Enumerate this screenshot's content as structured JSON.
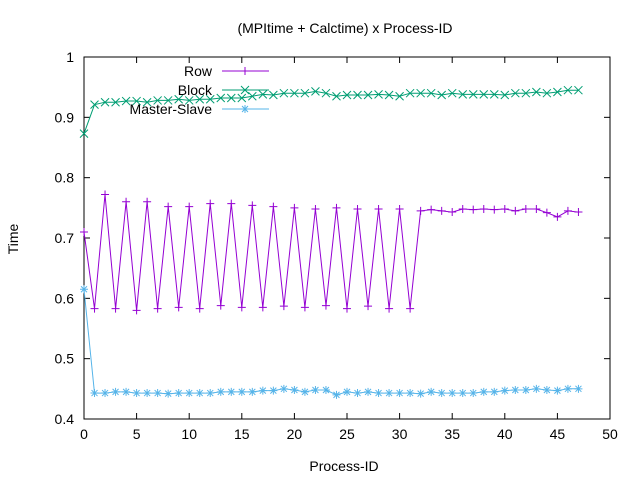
{
  "chart_data": {
    "type": "line",
    "title": "(MPItime + Calctime) x Process-ID",
    "xlabel": "Process-ID",
    "ylabel": "Time",
    "xlim": [
      0,
      50
    ],
    "ylim": [
      0.4,
      1.0
    ],
    "xticks": [
      0,
      5,
      10,
      15,
      20,
      25,
      30,
      35,
      40,
      45,
      50
    ],
    "yticks": [
      0.4,
      0.5,
      0.6,
      0.7,
      0.8,
      0.9,
      1.0
    ],
    "xtick_labels": [
      "0",
      "5",
      "10",
      "15",
      "20",
      "25",
      "30",
      "35",
      "40",
      "45",
      "50"
    ],
    "ytick_labels": [
      "0.4",
      "0.5",
      "0.6",
      "0.7",
      "0.8",
      "0.9",
      "1"
    ],
    "grid": false,
    "legend_position": "top-left",
    "series": [
      {
        "name": "Row",
        "color": "#9400d3",
        "marker": "plus",
        "x": [
          0,
          1,
          2,
          3,
          4,
          5,
          6,
          7,
          8,
          9,
          10,
          11,
          12,
          13,
          14,
          15,
          16,
          17,
          18,
          19,
          20,
          21,
          22,
          23,
          24,
          25,
          26,
          27,
          28,
          29,
          30,
          31,
          32,
          33,
          34,
          35,
          36,
          37,
          38,
          39,
          40,
          41,
          42,
          43,
          44,
          45,
          46,
          47
        ],
        "values": [
          0.71,
          0.583,
          0.772,
          0.583,
          0.76,
          0.58,
          0.76,
          0.583,
          0.752,
          0.585,
          0.752,
          0.583,
          0.757,
          0.588,
          0.757,
          0.585,
          0.754,
          0.585,
          0.752,
          0.587,
          0.75,
          0.585,
          0.748,
          0.588,
          0.75,
          0.583,
          0.748,
          0.587,
          0.748,
          0.583,
          0.748,
          0.583,
          0.745,
          0.747,
          0.745,
          0.743,
          0.748,
          0.747,
          0.748,
          0.747,
          0.748,
          0.745,
          0.748,
          0.748,
          0.742,
          0.735,
          0.745,
          0.743
        ]
      },
      {
        "name": "Block",
        "color": "#009e73",
        "marker": "cross",
        "x": [
          0,
          1,
          2,
          3,
          4,
          5,
          6,
          7,
          8,
          9,
          10,
          11,
          12,
          13,
          14,
          15,
          16,
          17,
          18,
          19,
          20,
          21,
          22,
          23,
          24,
          25,
          26,
          27,
          28,
          29,
          30,
          31,
          32,
          33,
          34,
          35,
          36,
          37,
          38,
          39,
          40,
          41,
          42,
          43,
          44,
          45,
          46,
          47
        ],
        "values": [
          0.873,
          0.921,
          0.925,
          0.925,
          0.927,
          0.927,
          0.925,
          0.928,
          0.928,
          0.93,
          0.928,
          0.93,
          0.93,
          0.932,
          0.932,
          0.932,
          0.935,
          0.938,
          0.937,
          0.94,
          0.94,
          0.94,
          0.943,
          0.94,
          0.935,
          0.937,
          0.937,
          0.937,
          0.938,
          0.937,
          0.935,
          0.94,
          0.94,
          0.94,
          0.937,
          0.94,
          0.938,
          0.938,
          0.938,
          0.938,
          0.937,
          0.94,
          0.94,
          0.942,
          0.94,
          0.942,
          0.945,
          0.945
        ]
      },
      {
        "name": "Master-Slave",
        "color": "#56b4e9",
        "marker": "star",
        "x": [
          0,
          1,
          2,
          3,
          4,
          5,
          6,
          7,
          8,
          9,
          10,
          11,
          12,
          13,
          14,
          15,
          16,
          17,
          18,
          19,
          20,
          21,
          22,
          23,
          24,
          25,
          26,
          27,
          28,
          29,
          30,
          31,
          32,
          33,
          34,
          35,
          36,
          37,
          38,
          39,
          40,
          41,
          42,
          43,
          44,
          45,
          46,
          47
        ],
        "values": [
          0.615,
          0.443,
          0.443,
          0.445,
          0.445,
          0.443,
          0.443,
          0.443,
          0.442,
          0.443,
          0.443,
          0.443,
          0.443,
          0.445,
          0.445,
          0.445,
          0.445,
          0.447,
          0.447,
          0.45,
          0.448,
          0.445,
          0.448,
          0.448,
          0.44,
          0.445,
          0.443,
          0.445,
          0.443,
          0.443,
          0.443,
          0.443,
          0.442,
          0.445,
          0.443,
          0.443,
          0.443,
          0.443,
          0.445,
          0.445,
          0.447,
          0.448,
          0.448,
          0.45,
          0.448,
          0.447,
          0.45,
          0.45
        ]
      }
    ]
  }
}
